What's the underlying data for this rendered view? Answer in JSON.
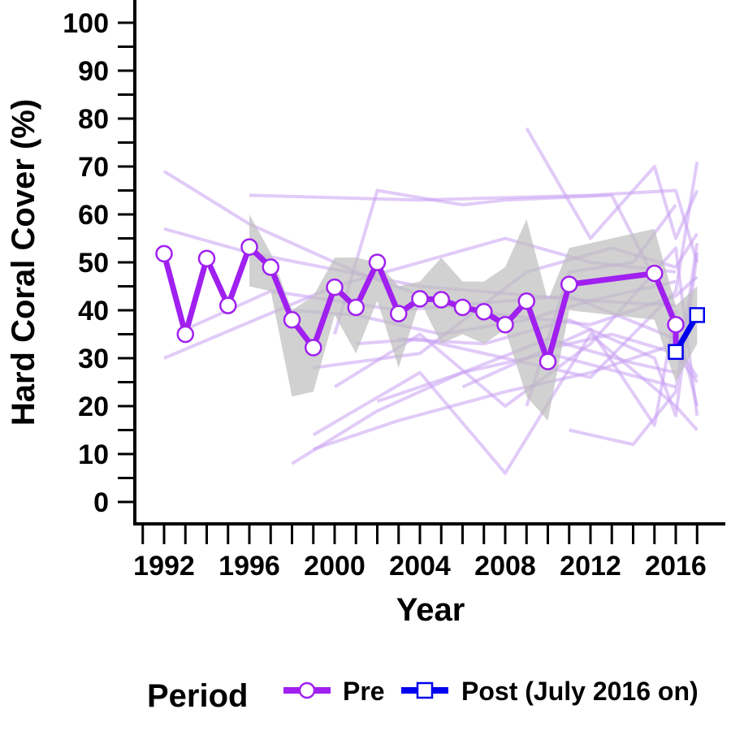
{
  "chart_data": {
    "type": "line",
    "xlabel": "Year",
    "ylabel": "Hard Coral Cover (%)",
    "xlim": [
      1990.7,
      2017.1
    ],
    "ylim": [
      0,
      100
    ],
    "x_ticks": [
      1991,
      1992,
      1993,
      1994,
      1995,
      1996,
      1997,
      1998,
      1999,
      2000,
      2001,
      2002,
      2003,
      2004,
      2005,
      2006,
      2007,
      2008,
      2009,
      2010,
      2011,
      2012,
      2013,
      2014,
      2015,
      2016,
      2017
    ],
    "x_tick_labels": [
      "1992",
      "1996",
      "2000",
      "2004",
      "2008",
      "2012",
      "2016"
    ],
    "y_ticks": [
      0,
      5,
      10,
      15,
      20,
      25,
      30,
      35,
      40,
      45,
      50,
      55,
      60,
      65,
      70,
      75,
      80,
      85,
      90,
      95,
      100
    ],
    "y_tick_labels": [
      "0",
      "10",
      "20",
      "30",
      "40",
      "50",
      "60",
      "70",
      "80",
      "90",
      "100"
    ],
    "grid": false,
    "legend": {
      "title": "Period",
      "position": "bottom",
      "entries": [
        "Pre",
        "Post (July 2016 on)"
      ]
    },
    "colors": {
      "pre": "#A020F0",
      "post": "#0000EE",
      "site_lines": "#C9A0F2",
      "band": "#BEBEBE"
    },
    "series": [
      {
        "name": "Pre",
        "marker": "circle",
        "x": [
          1992,
          1993,
          1994,
          1995,
          1996,
          1997,
          1998,
          1999,
          2000,
          2001,
          2002,
          2003,
          2004,
          2005,
          2006,
          2007,
          2008,
          2009,
          2010,
          2011,
          2015,
          2016
        ],
        "y": [
          51.8,
          35,
          50.8,
          41,
          53.2,
          49,
          38,
          32.2,
          44.8,
          40.6,
          50,
          39.3,
          42.4,
          42.2,
          40.6,
          39.7,
          37,
          41.9,
          29.3,
          45.4,
          47.7,
          37
        ]
      },
      {
        "name": "Post (July 2016 on)",
        "marker": "square",
        "x": [
          2016,
          2017
        ],
        "y": [
          31.3,
          39
        ]
      }
    ],
    "confidence_band": {
      "x": [
        1996,
        1997,
        1998,
        1999,
        2000,
        2001,
        2002,
        2003,
        2004,
        2005,
        2006,
        2007,
        2008,
        2009,
        2010,
        2011,
        2015,
        2016,
        2017
      ],
      "lower": [
        45,
        44,
        22,
        23,
        39,
        31,
        42,
        28,
        42,
        33,
        35,
        33,
        36,
        22,
        17,
        40,
        38,
        25,
        33
      ],
      "upper": [
        60,
        52,
        40,
        43,
        51,
        51,
        50,
        45,
        46,
        51,
        46,
        46,
        49,
        59,
        42,
        53,
        57,
        41,
        45
      ]
    },
    "site_trajectories": [
      {
        "x": [
          1992,
          2000,
          2008,
          2012,
          2016
        ],
        "y": [
          30,
          45,
          55,
          50,
          48
        ]
      },
      {
        "x": [
          1992,
          1996,
          2001,
          2006,
          2012,
          2016,
          2017
        ],
        "y": [
          69,
          58,
          48,
          40,
          37,
          43,
          47
        ]
      },
      {
        "x": [
          1992,
          1996,
          2004,
          2012,
          2016
        ],
        "y": [
          57,
          52,
          45,
          42,
          41
        ]
      },
      {
        "x": [
          1993,
          1997,
          2003,
          2011,
          2016
        ],
        "y": [
          36,
          44,
          40,
          43,
          34
        ]
      },
      {
        "x": [
          1996,
          2004,
          2012,
          2016,
          2017
        ],
        "y": [
          64,
          63,
          64,
          65,
          50
        ]
      },
      {
        "x": [
          1998,
          2002,
          2006,
          2010,
          2016
        ],
        "y": [
          8,
          19,
          27,
          31,
          24
        ]
      },
      {
        "x": [
          1999,
          2003,
          2008,
          2012,
          2016,
          2017
        ],
        "y": [
          11,
          17,
          23,
          27,
          33,
          26
        ]
      },
      {
        "x": [
          2000,
          2002,
          2006,
          2008,
          2013,
          2016,
          2017
        ],
        "y": [
          35,
          65,
          62,
          63,
          64,
          38,
          20
        ]
      },
      {
        "x": [
          2000,
          2004,
          2008,
          2012,
          2016,
          2017
        ],
        "y": [
          24,
          35,
          20,
          33,
          53,
          18
        ]
      },
      {
        "x": [
          1999,
          2004,
          2008,
          2012,
          2016,
          2017
        ],
        "y": [
          14,
          27,
          6,
          35,
          20,
          15
        ]
      },
      {
        "x": [
          2009,
          2012,
          2015,
          2016,
          2017
        ],
        "y": [
          78,
          55,
          70,
          55,
          65
        ]
      },
      {
        "x": [
          2011,
          2014,
          2016,
          2017
        ],
        "y": [
          15,
          12,
          23,
          54
        ]
      },
      {
        "x": [
          2010,
          2013,
          2016,
          2017
        ],
        "y": [
          32,
          35,
          31,
          25
        ]
      },
      {
        "x": [
          1999,
          2004,
          2009,
          2013,
          2016,
          2017
        ],
        "y": [
          28,
          31,
          48,
          53,
          49,
          56
        ]
      },
      {
        "x": [
          1998,
          2001,
          2005,
          2009,
          2012,
          2016
        ],
        "y": [
          40,
          39,
          35,
          38,
          42,
          46
        ]
      },
      {
        "x": [
          2002,
          2006,
          2010,
          2014,
          2016
        ],
        "y": [
          21,
          27,
          34,
          29,
          27
        ]
      },
      {
        "x": [
          2003,
          2007,
          2011,
          2015,
          2016,
          2017
        ],
        "y": [
          34,
          33,
          38,
          30,
          18,
          52
        ]
      },
      {
        "x": [
          2006,
          2009,
          2012,
          2015,
          2016
        ],
        "y": [
          24,
          30,
          36,
          16,
          40
        ]
      },
      {
        "x": [
          2001,
          2004,
          2008,
          2012,
          2016,
          2017
        ],
        "y": [
          33,
          34,
          30,
          26,
          44,
          71
        ]
      },
      {
        "x": [
          2009,
          2011,
          2014,
          2016
        ],
        "y": [
          20,
          48,
          50,
          62
        ]
      }
    ]
  }
}
